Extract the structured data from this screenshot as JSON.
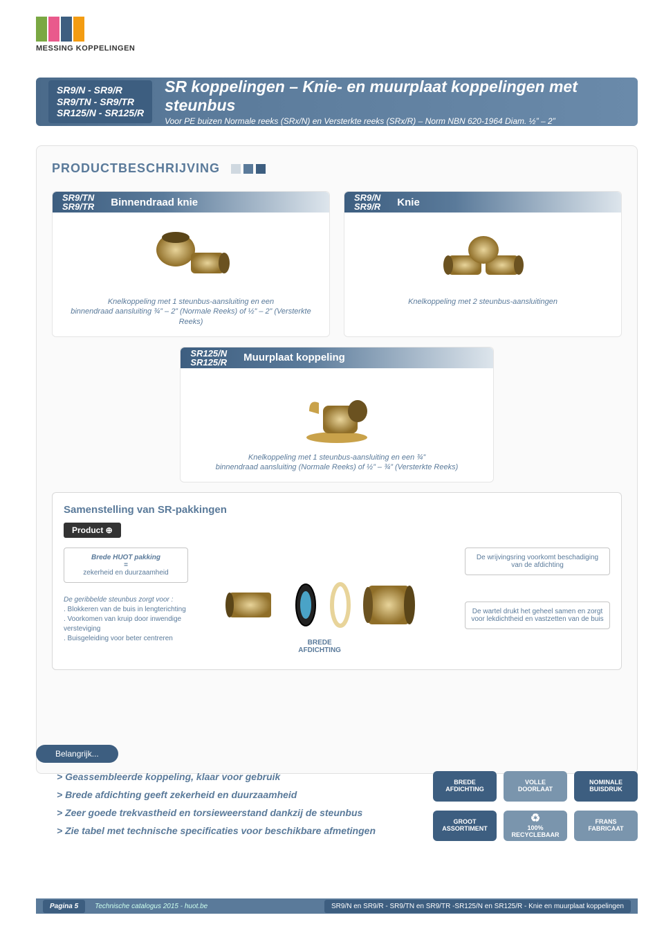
{
  "colors": {
    "banner_gradient_start": "#4a6a8a",
    "banner_gradient_end": "#6a8aaa",
    "header_box": "#3d5e80",
    "section_title": "#5a7a9a",
    "accent_text": "#5a7a9a",
    "logo_bars": [
      "#7aa843",
      "#e95a8c",
      "#3d5e80",
      "#f39c12"
    ],
    "title_squares": [
      "#cfd8e0",
      "#5a7a9a",
      "#3d5e80"
    ],
    "brass": "#c9a24a",
    "brass_dark": "#8f6e28",
    "footer_bg": "#5a7a9a"
  },
  "logo_text": "MESSING KOPPELINGEN",
  "header": {
    "codes": [
      "SR9/N - SR9/R",
      "SR9/TN - SR9/TR",
      "SR125/N - SR125/R"
    ],
    "title": "SR koppelingen – Knie- en muurplaat koppelingen met steunbus",
    "subtitle": "Voor PE buizen Normale reeks (SRx/N) en Versterkte reeks (SRx/R) – Norm NBN 620-1964 Diam. ½” – 2”"
  },
  "section_title": "PRODUCTBESCHRIJVING",
  "products": [
    {
      "codes": "SR9/TN\nSR9/TR",
      "name": "Binnendraad knie",
      "caption": "Knelkoppeling met 1 steunbus-aansluiting en een\nbinnendraad aansluiting ¾” – 2” (Normale Reeks) of ½” – 2” (Versterkte Reeks)"
    },
    {
      "codes": "SR9/N\nSR9/R",
      "name": "Knie",
      "caption": "Knelkoppeling met 2 steunbus-aansluitingen"
    },
    {
      "codes": "SR125/N\nSR125/R",
      "name": "Muurplaat koppeling",
      "caption": "Knelkoppeling met 1 steunbus-aansluiting en een ¾”\nbinnendraad aansluiting (Normale Reeks) of ½” – ¾” (Versterkte Reeks)"
    }
  ],
  "samen": {
    "title": "Samenstelling van SR-pakkingen",
    "badge": "Product ⊕",
    "left_box_top": "Brede HUOT pakking",
    "left_box_eq": "=",
    "left_box_bottom": "zekerheid en duurzaamheid",
    "left_list_lead": "De geribbelde steunbus zorgt voor :",
    "left_list_items": [
      ". Blokkeren van de buis in lengterichting",
      ". Voorkomen van kruip door inwendige versteviging",
      ". Buisgeleiding voor beter centreren"
    ],
    "right_box1": "De wrijvingsring voorkomt beschadiging van de afdichting",
    "right_box2": "De wartel drukt het geheel samen en zorgt voor lekdichtheid en vastzetten van de buis",
    "center_label": "BREDE\nAFDICHTING"
  },
  "belangrijk": {
    "tab": "Belangrijk...",
    "items": [
      "> Geassembleerde koppeling, klaar voor gebruik",
      "> Brede afdichting geeft zekerheid en duurzaamheid",
      "> Zeer goede trekvastheid en torsieweerstand dankzij de steunbus",
      "> Zie tabel met technische specificaties voor beschikbare afmetingen"
    ],
    "icons": [
      {
        "line1": "BREDE",
        "line2": "AFDICHTING"
      },
      {
        "line1": "VOLLE",
        "line2": "DOORLAAT"
      },
      {
        "line1": "NOMINALE",
        "line2": "BUISDRUK"
      },
      {
        "line1": "GROOT",
        "line2": "ASSORTIMENT"
      },
      {
        "line1": "♻",
        "line2": "100% RECYCLEBAAR"
      },
      {
        "line1": "FRANS",
        "line2": "FABRICAAT"
      }
    ]
  },
  "footer": {
    "page": "Pagina 5",
    "mid": "Technische catalogus 2015 - huot.be",
    "right": "SR9/N en SR9/R - SR9/TN en SR9/TR -SR125/N en SR125/R - Knie en muurplaat koppelingen"
  }
}
